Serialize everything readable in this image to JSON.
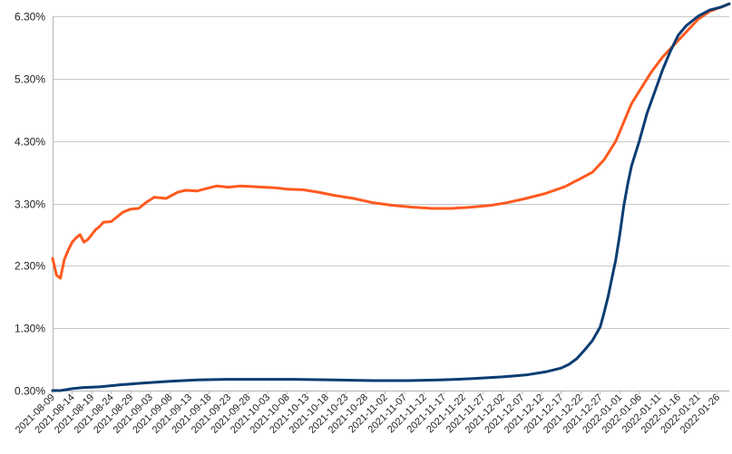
{
  "chart_data": {
    "type": "line",
    "title": "",
    "xlabel": "",
    "ylabel": "",
    "ylim": [
      0.3,
      6.3
    ],
    "y_ticks": [
      "0.30%",
      "1.30%",
      "2.30%",
      "3.30%",
      "4.30%",
      "5.30%",
      "6.30%"
    ],
    "y_tick_values": [
      0.3,
      1.3,
      2.3,
      3.3,
      4.3,
      5.3,
      6.3
    ],
    "x_ticks": [
      "2021-08-09",
      "2021-08-14",
      "2021-08-19",
      "2021-08-24",
      "2021-08-29",
      "2021-09-03",
      "2021-09-08",
      "2021-09-13",
      "2021-09-18",
      "2021-09-23",
      "2021-09-28",
      "2021-10-03",
      "2021-10-08",
      "2021-10-13",
      "2021-10-18",
      "2021-10-23",
      "2021-10-28",
      "2021-11-02",
      "2021-11-07",
      "2021-11-12",
      "2021-11-17",
      "2021-11-22",
      "2021-11-27",
      "2021-12-02",
      "2021-12-07",
      "2021-12-12",
      "2021-12-17",
      "2021-12-22",
      "2021-12-27",
      "2022-01-01",
      "2022-01-06",
      "2022-01-11",
      "2022-01-16",
      "2022-01-21",
      "2022-01-26"
    ],
    "grid": true,
    "legend": "none",
    "series": [
      {
        "color": "#ff5a1f",
        "points": [
          [
            "2021-08-09",
            2.42
          ],
          [
            "2021-08-10",
            2.15
          ],
          [
            "2021-08-11",
            2.1
          ],
          [
            "2021-08-12",
            2.4
          ],
          [
            "2021-08-13",
            2.55
          ],
          [
            "2021-08-14",
            2.68
          ],
          [
            "2021-08-15",
            2.75
          ],
          [
            "2021-08-16",
            2.8
          ],
          [
            "2021-08-17",
            2.68
          ],
          [
            "2021-08-18",
            2.72
          ],
          [
            "2021-08-19",
            2.8
          ],
          [
            "2021-08-20",
            2.88
          ],
          [
            "2021-08-21",
            2.93
          ],
          [
            "2021-08-22",
            3.0
          ],
          [
            "2021-08-24",
            3.01
          ],
          [
            "2021-08-25",
            3.06
          ],
          [
            "2021-08-27",
            3.16
          ],
          [
            "2021-08-29",
            3.21
          ],
          [
            "2021-08-31",
            3.22
          ],
          [
            "2021-09-02",
            3.32
          ],
          [
            "2021-09-04",
            3.4
          ],
          [
            "2021-09-07",
            3.38
          ],
          [
            "2021-09-10",
            3.48
          ],
          [
            "2021-09-12",
            3.51
          ],
          [
            "2021-09-15",
            3.5
          ],
          [
            "2021-09-18",
            3.55
          ],
          [
            "2021-09-20",
            3.58
          ],
          [
            "2021-09-23",
            3.56
          ],
          [
            "2021-09-26",
            3.58
          ],
          [
            "2021-09-29",
            3.57
          ],
          [
            "2021-10-02",
            3.56
          ],
          [
            "2021-10-05",
            3.55
          ],
          [
            "2021-10-08",
            3.53
          ],
          [
            "2021-10-12",
            3.52
          ],
          [
            "2021-10-16",
            3.48
          ],
          [
            "2021-10-20",
            3.43
          ],
          [
            "2021-10-25",
            3.38
          ],
          [
            "2021-10-30",
            3.31
          ],
          [
            "2021-11-04",
            3.27
          ],
          [
            "2021-11-09",
            3.24
          ],
          [
            "2021-11-14",
            3.22
          ],
          [
            "2021-11-19",
            3.22
          ],
          [
            "2021-11-24",
            3.24
          ],
          [
            "2021-11-29",
            3.27
          ],
          [
            "2021-12-03",
            3.31
          ],
          [
            "2021-12-08",
            3.38
          ],
          [
            "2021-12-13",
            3.46
          ],
          [
            "2021-12-18",
            3.57
          ],
          [
            "2021-12-22",
            3.7
          ],
          [
            "2021-12-25",
            3.8
          ],
          [
            "2021-12-28",
            4.0
          ],
          [
            "2021-12-31",
            4.3
          ],
          [
            "2022-01-02",
            4.6
          ],
          [
            "2022-01-04",
            4.9
          ],
          [
            "2022-01-06",
            5.1
          ],
          [
            "2022-01-09",
            5.4
          ],
          [
            "2022-01-12",
            5.65
          ],
          [
            "2022-01-15",
            5.85
          ],
          [
            "2022-01-18",
            6.05
          ],
          [
            "2022-01-21",
            6.25
          ],
          [
            "2022-01-24",
            6.38
          ],
          [
            "2022-01-27",
            6.45
          ],
          [
            "2022-01-29",
            6.5
          ]
        ]
      },
      {
        "color": "#0b3d72",
        "points": [
          [
            "2021-08-09",
            0.3
          ],
          [
            "2021-08-10",
            0.3
          ],
          [
            "2021-08-11",
            0.3
          ],
          [
            "2021-08-12",
            0.31
          ],
          [
            "2021-08-14",
            0.33
          ],
          [
            "2021-08-17",
            0.35
          ],
          [
            "2021-08-21",
            0.36
          ],
          [
            "2021-08-26",
            0.39
          ],
          [
            "2021-09-01",
            0.42
          ],
          [
            "2021-09-08",
            0.45
          ],
          [
            "2021-09-15",
            0.47
          ],
          [
            "2021-09-22",
            0.48
          ],
          [
            "2021-10-01",
            0.48
          ],
          [
            "2021-10-10",
            0.48
          ],
          [
            "2021-10-20",
            0.47
          ],
          [
            "2021-10-30",
            0.46
          ],
          [
            "2021-11-08",
            0.46
          ],
          [
            "2021-11-16",
            0.47
          ],
          [
            "2021-11-24",
            0.49
          ],
          [
            "2021-12-02",
            0.52
          ],
          [
            "2021-12-08",
            0.55
          ],
          [
            "2021-12-13",
            0.6
          ],
          [
            "2021-12-17",
            0.66
          ],
          [
            "2021-12-19",
            0.72
          ],
          [
            "2021-12-21",
            0.81
          ],
          [
            "2021-12-23",
            0.95
          ],
          [
            "2021-12-25",
            1.1
          ],
          [
            "2021-12-27",
            1.32
          ],
          [
            "2021-12-28",
            1.55
          ],
          [
            "2021-12-29",
            1.8
          ],
          [
            "2021-12-30",
            2.1
          ],
          [
            "2021-12-31",
            2.4
          ],
          [
            "2022-01-01",
            2.8
          ],
          [
            "2022-01-02",
            3.25
          ],
          [
            "2022-01-03",
            3.6
          ],
          [
            "2022-01-04",
            3.9
          ],
          [
            "2022-01-06",
            4.3
          ],
          [
            "2022-01-08",
            4.75
          ],
          [
            "2022-01-10",
            5.1
          ],
          [
            "2022-01-12",
            5.45
          ],
          [
            "2022-01-14",
            5.75
          ],
          [
            "2022-01-16",
            6.0
          ],
          [
            "2022-01-18",
            6.15
          ],
          [
            "2022-01-21",
            6.3
          ],
          [
            "2022-01-24",
            6.4
          ],
          [
            "2022-01-27",
            6.45
          ],
          [
            "2022-01-29",
            6.5
          ]
        ]
      }
    ]
  }
}
